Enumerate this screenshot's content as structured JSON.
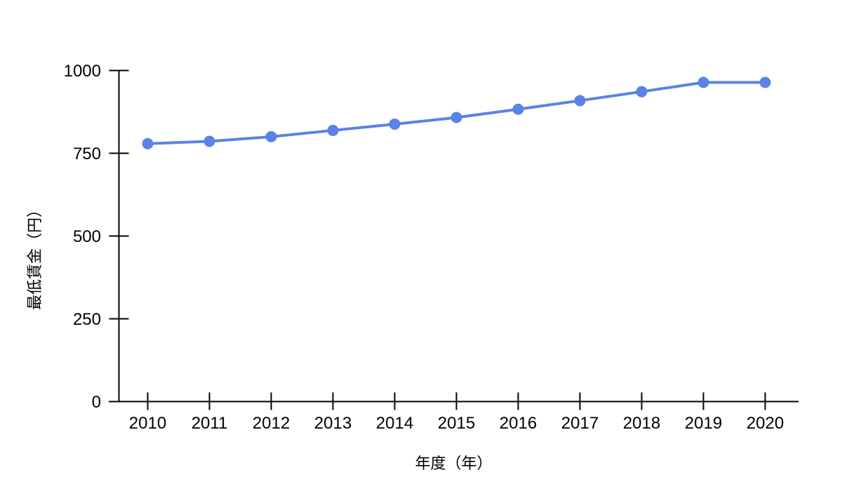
{
  "chart_data": {
    "type": "line",
    "xlabel": "年度（年）",
    "ylabel": "最低賃金（円）",
    "categories": [
      "2010",
      "2011",
      "2012",
      "2013",
      "2014",
      "2015",
      "2016",
      "2017",
      "2018",
      "2019",
      "2020"
    ],
    "values": [
      779,
      786,
      800,
      819,
      838,
      858,
      883,
      909,
      936,
      964,
      964
    ],
    "ylim": [
      0,
      1000
    ],
    "yticks": [
      0,
      250,
      500,
      750,
      1000
    ],
    "grid": false,
    "legend": "none",
    "colors": {
      "line": "#5b82e6",
      "marker": "#5b82e6",
      "axis": "#000000",
      "text": "#000000",
      "background": "#ffffff"
    }
  }
}
